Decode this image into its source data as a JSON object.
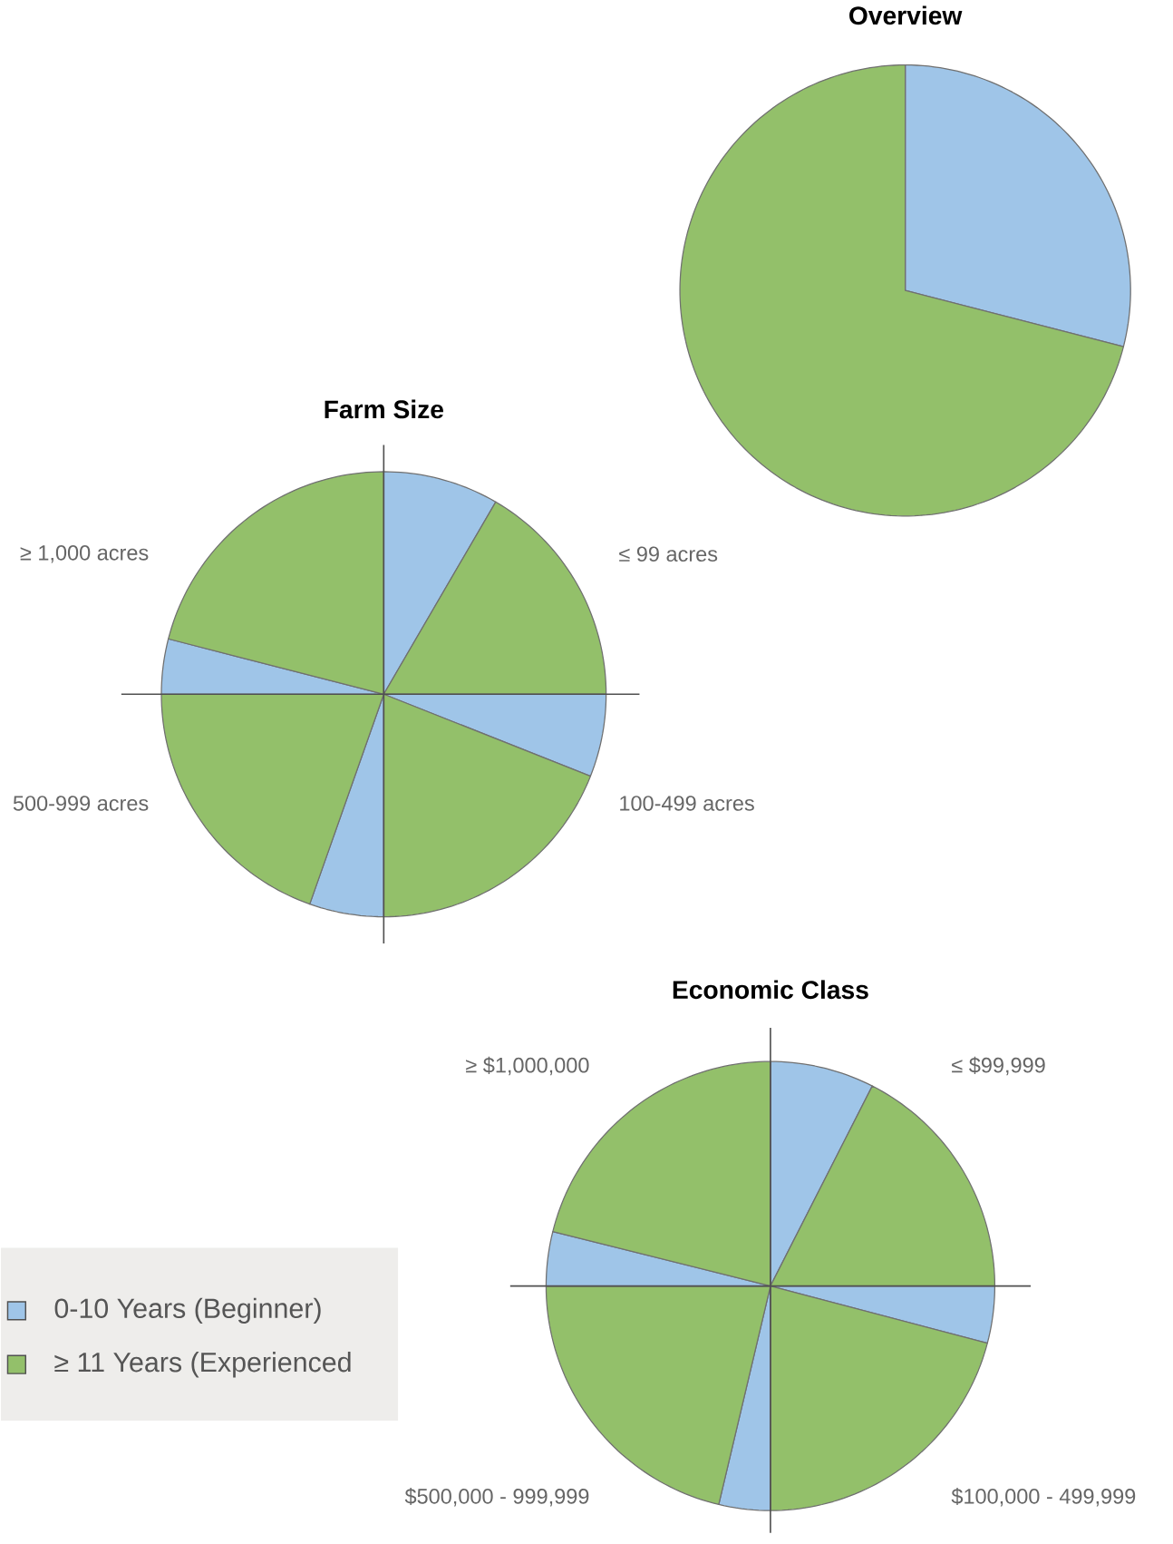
{
  "chart_data": [
    {
      "type": "pie",
      "title": "Overview",
      "categories": [
        null,
        null
      ],
      "values": [
        29,
        71
      ],
      "colors": [
        "#9fc5e8",
        "#93c06a"
      ]
    },
    {
      "type": "pie",
      "title": "Farm Size",
      "categories": [
        null,
        "≤ 99 acres",
        null,
        "100-499 acres",
        null,
        "500-999 acres",
        null,
        "≥ 1,000 acres"
      ],
      "values": [
        8.4,
        16.6,
        6.0,
        19.0,
        5.4,
        19.6,
        4.0,
        21.0
      ],
      "colors": [
        "#9fc5e8",
        "#93c06a",
        "#9fc5e8",
        "#93c06a",
        "#9fc5e8",
        "#93c06a",
        "#9fc5e8",
        "#93c06a"
      ]
    },
    {
      "type": "pie",
      "title": "Economic Class",
      "categories": [
        null,
        "≤ $99,999",
        null,
        "$100,000 - 499,999",
        null,
        "$500,000 - 999,999",
        null,
        "≥ $1,000,000"
      ],
      "values": [
        7.5,
        17.5,
        4.1,
        20.9,
        3.7,
        21.3,
        3.9,
        21.1
      ],
      "colors": [
        "#9fc5e8",
        "#93c06a",
        "#9fc5e8",
        "#93c06a",
        "#9fc5e8",
        "#93c06a",
        "#9fc5e8",
        "#93c06a"
      ],
      "annotations": [
        "0-10 Years (Beginner)",
        "≥ 11 Years (Experienced"
      ]
    }
  ]
}
